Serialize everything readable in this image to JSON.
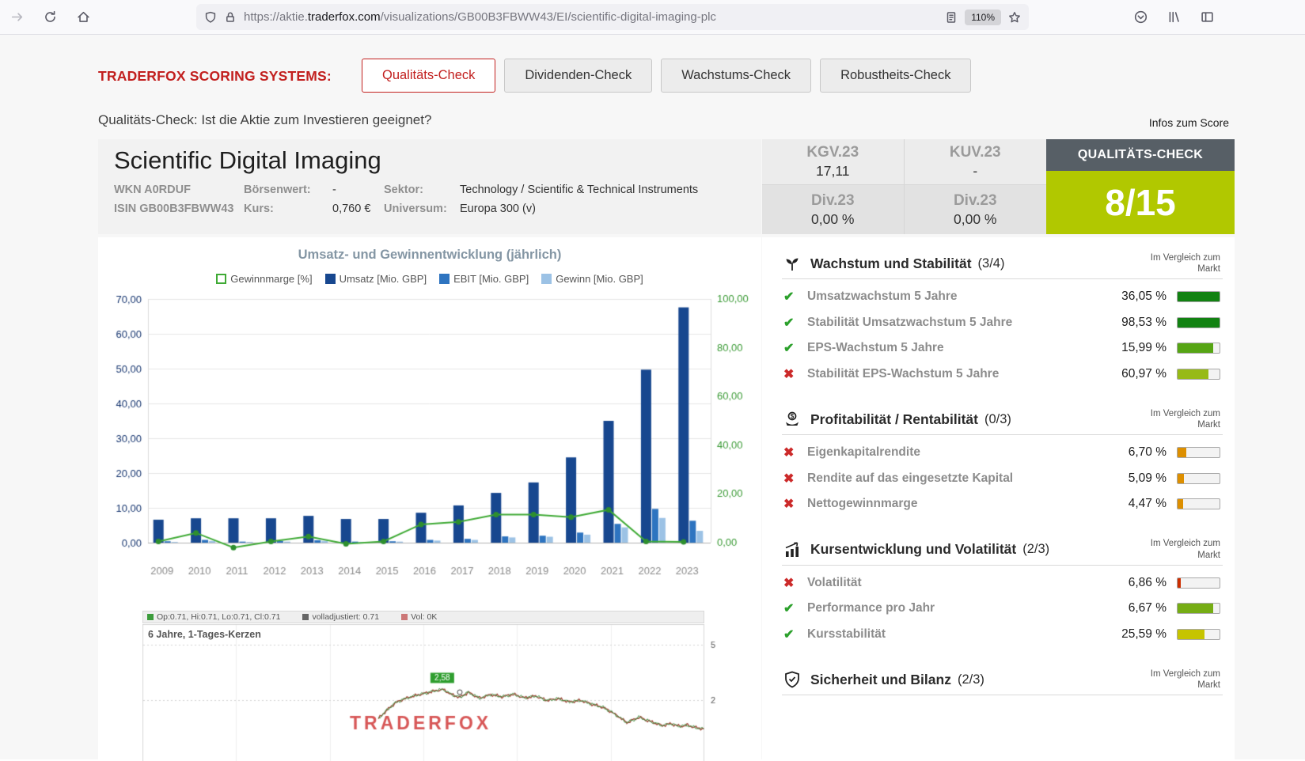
{
  "colors": {
    "brand_red": "#c2201f",
    "score_green": "#b1c800",
    "header_slate": "#575f66"
  },
  "browser": {
    "url": {
      "scheme": "https://",
      "subdomain": "aktie.",
      "domain": "traderfox.com",
      "path": "/visualizations/GB00B3FBWW43/EI/scientific-digital-imaging-plc"
    },
    "zoom_level": "110%"
  },
  "scoring": {
    "label": "TRADERFOX SCORING SYSTEMS:",
    "tabs": [
      {
        "label": "Qualitäts-Check",
        "active": true
      },
      {
        "label": "Dividenden-Check",
        "active": false
      },
      {
        "label": "Wachstums-Check",
        "active": false
      },
      {
        "label": "Robustheits-Check",
        "active": false
      }
    ],
    "subtitle": "Qualitäts-Check: Ist die Aktie zum Investieren geeignet?",
    "infos_link": "Infos zum Score"
  },
  "stock": {
    "name": "Scientific Digital Imaging",
    "wkn": "WKN A0RDUF",
    "isin": "ISIN GB00B3FBWW43",
    "boersenwert_label": "Börsenwert:",
    "boersenwert_value": "-",
    "kurs_label": "Kurs:",
    "kurs_value": "0,760 €",
    "sektor_label": "Sektor:",
    "sektor_value": "Technology / Scientific & Technical Instruments",
    "universum_label": "Universum:",
    "universum_value": "Europa 300 (v)"
  },
  "metrics": {
    "kgv_label": "KGV.23",
    "kgv_value": "17,11",
    "kuv_label": "KUV.23",
    "kuv_value": "-",
    "div_left_label": "Div.23",
    "div_left_value": "0,00 %",
    "div_right_label": "Div.23",
    "div_right_value": "0,00 %"
  },
  "quality": {
    "title": "QUALITÄTS-CHECK",
    "score": "8/15"
  },
  "chart_data": [
    {
      "type": "bar",
      "title": "Umsatz- und Gewinnentwicklung (jährlich)",
      "categories": [
        "2009",
        "2010",
        "2011",
        "2012",
        "2013",
        "2014",
        "2015",
        "2016",
        "2017",
        "2018",
        "2019",
        "2020",
        "2021",
        "2022",
        "2023"
      ],
      "series": [
        {
          "name": "Gewinnmarge [%]",
          "type": "line",
          "axis": "right",
          "color": "#3faa35",
          "marker_color": "#2e8f2e",
          "values": [
            0.5,
            4.0,
            -2.0,
            0.5,
            2.5,
            -0.5,
            0.5,
            7.5,
            8.5,
            11.5,
            11.5,
            10.5,
            13.5,
            0.5,
            0.3
          ]
        },
        {
          "name": "Umsatz [Mio. GBP]",
          "type": "bar",
          "axis": "left",
          "color": "#17478f",
          "values": [
            6.6,
            7.0,
            7.0,
            7.0,
            7.7,
            6.8,
            6.8,
            8.6,
            10.7,
            14.3,
            17.3,
            24.5,
            35.0,
            49.7,
            67.6
          ]
        },
        {
          "name": "EBIT [Mio. GBP]",
          "type": "bar",
          "axis": "left",
          "color": "#2e74c0",
          "values": [
            0.4,
            0.8,
            0.3,
            0.5,
            0.7,
            0.3,
            0.4,
            0.8,
            1.1,
            1.8,
            2.0,
            2.9,
            5.4,
            9.7,
            6.3
          ]
        },
        {
          "name": "Gewinn [Mio. GBP]",
          "type": "bar",
          "axis": "left",
          "color": "#9cc2e5",
          "values": [
            0.2,
            0.5,
            0.2,
            0.3,
            0.5,
            0.2,
            0.3,
            0.6,
            0.8,
            1.5,
            1.7,
            2.3,
            4.4,
            7.1,
            3.4
          ]
        }
      ],
      "left_axis": {
        "min": 0,
        "max": 70,
        "tick_labels": [
          "0,00",
          "10,00",
          "20,00",
          "30,00",
          "40,00",
          "50,00",
          "60,00",
          "70,00"
        ],
        "color": "#16356f"
      },
      "right_axis": {
        "min": 0,
        "max": 100,
        "tick_labels": [
          "0,00",
          "20,00",
          "40,00",
          "60,00",
          "80,00",
          "100,00"
        ],
        "color": "#3a9a35"
      },
      "grid": true,
      "legend_position": "top"
    },
    {
      "type": "line",
      "label": "6 Jahre, 1-Tages-Kerzen",
      "legend": [
        {
          "color": "#3c9c3c",
          "text": "Op:0.71, Hi:0.71, Lo:0.71, Cl:0.71"
        },
        {
          "color": "#666666",
          "text": "volladjustiert: 0.71"
        },
        {
          "color": "#cc7777",
          "text": "Vol: 0K"
        }
      ],
      "peak_label": "2,58",
      "peak_value": 2.58,
      "y_ticks": [
        {
          "value": 5,
          "label": "5"
        },
        {
          "value": 2,
          "label": "2"
        }
      ],
      "watermark": "TRADERFOX",
      "points": [
        [
          0.42,
          1.0
        ],
        [
          0.435,
          1.45
        ],
        [
          0.45,
          1.85
        ],
        [
          0.465,
          2.05
        ],
        [
          0.48,
          2.2
        ],
        [
          0.5,
          2.35
        ],
        [
          0.52,
          2.5
        ],
        [
          0.535,
          2.58
        ],
        [
          0.55,
          2.3
        ],
        [
          0.565,
          2.15
        ],
        [
          0.58,
          2.42
        ],
        [
          0.6,
          2.1
        ],
        [
          0.62,
          2.3
        ],
        [
          0.64,
          2.18
        ],
        [
          0.66,
          2.32
        ],
        [
          0.68,
          2.12
        ],
        [
          0.7,
          2.22
        ],
        [
          0.72,
          1.98
        ],
        [
          0.74,
          2.08
        ],
        [
          0.76,
          1.9
        ],
        [
          0.78,
          1.98
        ],
        [
          0.8,
          1.78
        ],
        [
          0.82,
          1.6
        ],
        [
          0.835,
          1.35
        ],
        [
          0.85,
          1.05
        ],
        [
          0.862,
          0.78
        ],
        [
          0.872,
          0.9
        ],
        [
          0.884,
          1.08
        ],
        [
          0.896,
          0.92
        ],
        [
          0.91,
          0.78
        ],
        [
          0.925,
          0.62
        ],
        [
          0.94,
          0.72
        ],
        [
          0.955,
          0.58
        ],
        [
          0.97,
          0.64
        ],
        [
          0.985,
          0.5
        ],
        [
          1.0,
          0.44
        ]
      ]
    }
  ],
  "score_panel": {
    "compare_note": "Im Vergleich zum Markt",
    "sections": [
      {
        "icon": "sprout-icon",
        "title": "Wachstum und Stabilität",
        "score": "(3/4)",
        "items": [
          {
            "passed": true,
            "label": "Umsatzwachstum 5 Jahre",
            "value": "36,05 %",
            "bar_pct": 100,
            "bar_color": "#128212"
          },
          {
            "passed": true,
            "label": "Stabilität Umsatzwachstum 5 Jahre",
            "value": "98,53 %",
            "bar_pct": 100,
            "bar_color": "#128212"
          },
          {
            "passed": true,
            "label": "EPS-Wachstum 5 Jahre",
            "value": "15,99 %",
            "bar_pct": 85,
            "bar_color": "#56a514"
          },
          {
            "passed": false,
            "label": "Stabilität EPS-Wachstum 5 Jahre",
            "value": "60,97 %",
            "bar_pct": 74,
            "bar_color": "#97ba16"
          }
        ]
      },
      {
        "icon": "money-hands-icon",
        "title": "Profitabilität / Rentabilität",
        "score": "(0/3)",
        "items": [
          {
            "passed": false,
            "label": "Eigenkapitalrendite",
            "value": "6,70 %",
            "bar_pct": 20,
            "bar_color": "#dd8f00"
          },
          {
            "passed": false,
            "label": "Rendite auf das eingesetzte Kapital",
            "value": "5,09 %",
            "bar_pct": 16,
            "bar_color": "#dd8f00"
          },
          {
            "passed": false,
            "label": "Nettogewinnmarge",
            "value": "4,47 %",
            "bar_pct": 13,
            "bar_color": "#dd8f00"
          }
        ]
      },
      {
        "icon": "chart-growth-icon",
        "title": "Kursentwicklung und Volatilität",
        "score": "(2/3)",
        "items": [
          {
            "passed": false,
            "label": "Volatilität",
            "value": "6,86 %",
            "bar_pct": 8,
            "bar_color": "#cc2e00"
          },
          {
            "passed": true,
            "label": "Performance pro Jahr",
            "value": "6,67 %",
            "bar_pct": 84,
            "bar_color": "#76ad14"
          },
          {
            "passed": true,
            "label": "Kursstabilität",
            "value": "25,59 %",
            "bar_pct": 64,
            "bar_color": "#c6c400"
          }
        ]
      },
      {
        "icon": "shield-check-icon",
        "title": "Sicherheit und Bilanz",
        "score": "(2/3)",
        "items": []
      }
    ]
  }
}
